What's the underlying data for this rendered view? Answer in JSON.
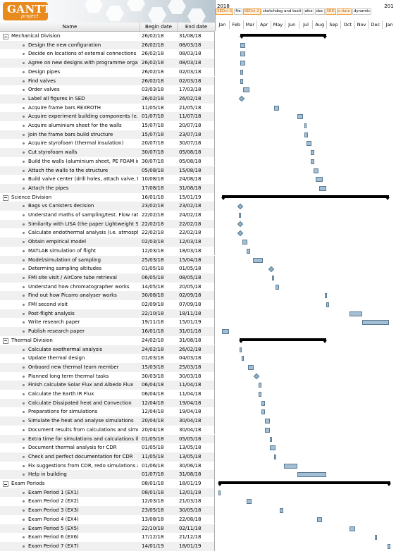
{
  "app": {
    "logo_text": "GANTT",
    "logo_sub": "project"
  },
  "columns": {
    "name": "Name",
    "begin": "Begin date",
    "end": "End date"
  },
  "timeline": {
    "years": [
      {
        "label": "2018",
        "month_index": 0
      },
      {
        "label": "201",
        "month_index": 12
      }
    ],
    "tags": [
      {
        "label": "SEDcl-S",
        "highlight": true
      },
      {
        "label": "fte",
        "highlight": false
      },
      {
        "label": "SEDcl-2",
        "highlight": true
      },
      {
        "label": "cketchdog and texit",
        "highlight": false
      },
      {
        "label": "atte",
        "highlight": false
      },
      {
        "label": "dec",
        "highlight": false
      },
      {
        "label": "SED",
        "highlight": true
      },
      {
        "label": "s-date",
        "highlight": true
      },
      {
        "label": "dynamic",
        "highlight": false
      }
    ],
    "months": [
      "Jan",
      "Feb",
      "Mar",
      "Apr",
      "May",
      "Jun",
      "Jul",
      "Aug",
      "Sep",
      "Oct",
      "Nov",
      "Dec",
      "Jan"
    ],
    "start": "2018-01-01",
    "end": "2019-01-31"
  },
  "rows": [
    {
      "type": "group",
      "name": "Mechanical Division",
      "begin": "26/02/18",
      "end": "31/08/18"
    },
    {
      "type": "task",
      "name": "Design the new configuration",
      "begin": "26/02/18",
      "end": "08/03/18"
    },
    {
      "type": "task",
      "name": "Decide on locations of external connections",
      "begin": "26/02/18",
      "end": "08/03/18"
    },
    {
      "type": "task",
      "name": "Agree on new designs with programme organ...",
      "begin": "26/02/18",
      "end": "08/03/18"
    },
    {
      "type": "task",
      "name": "Design pipes",
      "begin": "26/02/18",
      "end": "02/03/18"
    },
    {
      "type": "task",
      "name": "Find valves",
      "begin": "26/02/18",
      "end": "02/03/18"
    },
    {
      "type": "task",
      "name": "Order valves",
      "begin": "03/03/18",
      "end": "17/03/18"
    },
    {
      "type": "task",
      "name": "Label all figures in SED",
      "begin": "26/02/18",
      "end": "26/02/18"
    },
    {
      "type": "task",
      "name": "Acquire frame bars REXROTH",
      "begin": "11/05/18",
      "end": "21/05/18"
    },
    {
      "type": "task",
      "name": "Acquire experiment building components (e....",
      "begin": "01/07/18",
      "end": "11/07/18"
    },
    {
      "type": "task",
      "name": "Acquire aluminium sheet for the walls",
      "begin": "15/07/18",
      "end": "20/07/18"
    },
    {
      "type": "task",
      "name": "Join the frame bars build structure",
      "begin": "15/07/18",
      "end": "23/07/18"
    },
    {
      "type": "task",
      "name": "Acquire styrofoam (thermal insulation)",
      "begin": "20/07/18",
      "end": "30/07/18"
    },
    {
      "type": "task",
      "name": "Cut styrofoam walls",
      "begin": "30/07/18",
      "end": "05/08/18"
    },
    {
      "type": "task",
      "name": "Build the walls (aluminium sheet, PE FOAM in...",
      "begin": "30/07/18",
      "end": "05/08/18"
    },
    {
      "type": "task",
      "name": "Attach the walls to the structure",
      "begin": "05/08/18",
      "end": "15/08/18"
    },
    {
      "type": "task",
      "name": "Build valve center (drill holes, attach valve, fix ...",
      "begin": "10/08/18",
      "end": "24/08/18"
    },
    {
      "type": "task",
      "name": "Attach the pipes",
      "begin": "17/08/18",
      "end": "31/08/18"
    },
    {
      "type": "group",
      "name": "Science Division",
      "begin": "16/01/18",
      "end": "15/01/19"
    },
    {
      "type": "task",
      "name": "Bags vs Canisters decision",
      "begin": "23/02/18",
      "end": "23/02/18"
    },
    {
      "type": "task",
      "name": "Understand maths of sampling/test. Flow rate...",
      "begin": "22/02/18",
      "end": "24/02/18"
    },
    {
      "type": "task",
      "name": "Similarity with LISA (the paper Lightweight Str...",
      "begin": "22/02/18",
      "end": "22/02/18"
    },
    {
      "type": "task",
      "name": "Calculate endothermal analysis (i.e. atmosphe...",
      "begin": "22/02/18",
      "end": "22/02/18"
    },
    {
      "type": "task",
      "name": "Obtain empirical model",
      "begin": "02/03/18",
      "end": "12/03/18"
    },
    {
      "type": "task",
      "name": "MATLAB simulation of flight",
      "begin": "12/03/18",
      "end": "18/03/18"
    },
    {
      "type": "task",
      "name": "Model/simulation of sampling",
      "begin": "25/03/18",
      "end": "15/04/18"
    },
    {
      "type": "task",
      "name": "Determing sampling altitudes",
      "begin": "01/05/18",
      "end": "01/05/18"
    },
    {
      "type": "task",
      "name": "FMI site visit / AirCore tube retrieval",
      "begin": "06/05/18",
      "end": "08/05/18"
    },
    {
      "type": "task",
      "name": "Understand how chromatographer works",
      "begin": "14/05/18",
      "end": "20/05/18"
    },
    {
      "type": "task",
      "name": "Find out how Picarro analyser works",
      "begin": "30/08/18",
      "end": "02/09/18"
    },
    {
      "type": "task",
      "name": "FMI second visit",
      "begin": "02/09/18",
      "end": "07/09/18"
    },
    {
      "type": "task",
      "name": "Post-flight analysis",
      "begin": "22/10/18",
      "end": "18/11/18"
    },
    {
      "type": "task",
      "name": "Write research paper",
      "begin": "19/11/18",
      "end": "15/01/19"
    },
    {
      "type": "task",
      "name": "Publish research paper",
      "begin": "16/01/18",
      "end": "31/01/18"
    },
    {
      "type": "group",
      "name": "Thermal Division",
      "begin": "24/02/18",
      "end": "31/08/18"
    },
    {
      "type": "task",
      "name": "Calculate exothermal analysis",
      "begin": "24/02/18",
      "end": "26/02/18"
    },
    {
      "type": "task",
      "name": "Update thermal design",
      "begin": "01/03/18",
      "end": "04/03/18"
    },
    {
      "type": "task",
      "name": "Onboard new thermal team member",
      "begin": "15/03/18",
      "end": "25/03/18"
    },
    {
      "type": "task",
      "name": "Planned long term thermal tasks",
      "begin": "30/03/18",
      "end": "30/03/18"
    },
    {
      "type": "task",
      "name": "Finish calculate Solar Flux and Albedo Flux",
      "begin": "06/04/18",
      "end": "11/04/18"
    },
    {
      "type": "task",
      "name": "Calculate the Earth IR Flux",
      "begin": "06/04/18",
      "end": "11/04/18"
    },
    {
      "type": "task",
      "name": "Calculate Dissipated heat and Convection",
      "begin": "12/04/18",
      "end": "19/04/18"
    },
    {
      "type": "task",
      "name": "Preparations for simulations",
      "begin": "12/04/18",
      "end": "19/04/18"
    },
    {
      "type": "task",
      "name": "Simulate the heat and analyse simulations",
      "begin": "20/04/18",
      "end": "30/04/18"
    },
    {
      "type": "task",
      "name": "Document results from calculations and simul...",
      "begin": "20/04/18",
      "end": "30/04/18"
    },
    {
      "type": "task",
      "name": "Extra time for simulations and calculations if c...",
      "begin": "01/05/18",
      "end": "05/05/18"
    },
    {
      "type": "task",
      "name": "Document thermal analysis for CDR",
      "begin": "01/05/18",
      "end": "13/05/18"
    },
    {
      "type": "task",
      "name": "Check and perfect documentation for CDR",
      "begin": "11/05/18",
      "end": "13/05/18"
    },
    {
      "type": "task",
      "name": "Fix suggestions from CDR, redo simulations a...",
      "begin": "01/06/18",
      "end": "30/06/18"
    },
    {
      "type": "task",
      "name": "Help in building",
      "begin": "01/07/18",
      "end": "31/08/18"
    },
    {
      "type": "group",
      "name": "Exam Periods",
      "begin": "08/01/18",
      "end": "18/01/19"
    },
    {
      "type": "task",
      "name": "Exam Period 1 (EX1)",
      "begin": "08/01/18",
      "end": "12/01/18"
    },
    {
      "type": "task",
      "name": "Exam Period 2 (EX2)",
      "begin": "12/03/18",
      "end": "21/03/18"
    },
    {
      "type": "task",
      "name": "Exam Period 3 (EX3)",
      "begin": "23/05/18",
      "end": "30/05/18"
    },
    {
      "type": "task",
      "name": "Exam Period 4 (EX4)",
      "begin": "13/08/18",
      "end": "22/08/18"
    },
    {
      "type": "task",
      "name": "Exam Period 5 (EX5)",
      "begin": "22/10/18",
      "end": "02/11/18"
    },
    {
      "type": "task",
      "name": "Exam Period 6 (EX6)",
      "begin": "17/12/18",
      "end": "21/12/18"
    },
    {
      "type": "task",
      "name": "Exam Period 7 (EX7)",
      "begin": "14/01/19",
      "end": "18/01/19"
    }
  ]
}
